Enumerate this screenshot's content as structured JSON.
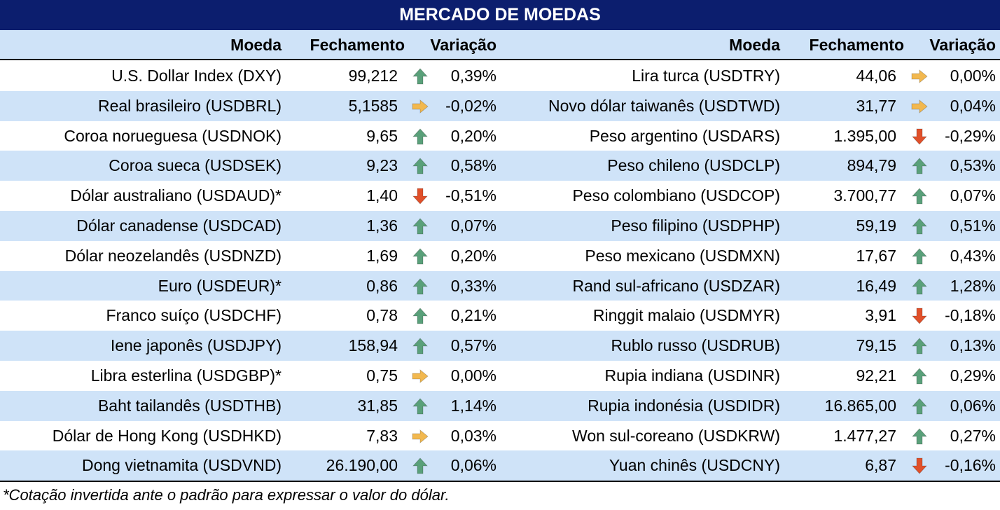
{
  "title": "MERCADO DE MOEDAS",
  "headers": {
    "currency": "Moeda",
    "close": "Fechamento",
    "change": "Variação"
  },
  "colors": {
    "title_bg": "#0c1e6e",
    "row_alt": "#cfe3f8",
    "up": "#5aa07a",
    "down": "#e0502a",
    "flat": "#f2b84f"
  },
  "left": [
    {
      "name": "U.S. Dollar Index (DXY)",
      "close": "99,212",
      "dir": "up",
      "change": "0,39%"
    },
    {
      "name": "Real brasileiro (USDBRL)",
      "close": "5,1585",
      "dir": "flat",
      "change": "-0,02%"
    },
    {
      "name": "Coroa norueguesa (USDNOK)",
      "close": "9,65",
      "dir": "up",
      "change": "0,20%"
    },
    {
      "name": "Coroa sueca (USDSEK)",
      "close": "9,23",
      "dir": "up",
      "change": "0,58%"
    },
    {
      "name": "Dólar australiano (USDAUD)*",
      "close": "1,40",
      "dir": "down",
      "change": "-0,51%"
    },
    {
      "name": "Dólar canadense (USDCAD)",
      "close": "1,36",
      "dir": "up",
      "change": "0,07%"
    },
    {
      "name": "Dólar neozelandês (USDNZD)",
      "close": "1,69",
      "dir": "up",
      "change": "0,20%"
    },
    {
      "name": "Euro (USDEUR)*",
      "close": "0,86",
      "dir": "up",
      "change": "0,33%"
    },
    {
      "name": "Franco suíço (USDCHF)",
      "close": "0,78",
      "dir": "up",
      "change": "0,21%"
    },
    {
      "name": "Iene japonês (USDJPY)",
      "close": "158,94",
      "dir": "up",
      "change": "0,57%"
    },
    {
      "name": "Libra esterlina (USDGBP)*",
      "close": "0,75",
      "dir": "flat",
      "change": "0,00%"
    },
    {
      "name": "Baht tailandês (USDTHB)",
      "close": "31,85",
      "dir": "up",
      "change": "1,14%"
    },
    {
      "name": "Dólar de Hong Kong (USDHKD)",
      "close": "7,83",
      "dir": "flat",
      "change": "0,03%"
    },
    {
      "name": "Dong vietnamita (USDVND)",
      "close": "26.190,00",
      "dir": "up",
      "change": "0,06%"
    }
  ],
  "right": [
    {
      "name": "Lira turca (USDTRY)",
      "close": "44,06",
      "dir": "flat",
      "change": "0,00%"
    },
    {
      "name": "Novo dólar taiwanês (USDTWD)",
      "close": "31,77",
      "dir": "flat",
      "change": "0,04%"
    },
    {
      "name": "Peso argentino (USDARS)",
      "close": "1.395,00",
      "dir": "down",
      "change": "-0,29%"
    },
    {
      "name": "Peso chileno (USDCLP)",
      "close": "894,79",
      "dir": "up",
      "change": "0,53%"
    },
    {
      "name": "Peso colombiano (USDCOP)",
      "close": "3.700,77",
      "dir": "up",
      "change": "0,07%"
    },
    {
      "name": "Peso filipino (USDPHP)",
      "close": "59,19",
      "dir": "up",
      "change": "0,51%"
    },
    {
      "name": "Peso mexicano (USDMXN)",
      "close": "17,67",
      "dir": "up",
      "change": "0,43%"
    },
    {
      "name": "Rand sul-africano (USDZAR)",
      "close": "16,49",
      "dir": "up",
      "change": "1,28%"
    },
    {
      "name": "Ringgit malaio (USDMYR)",
      "close": "3,91",
      "dir": "down",
      "change": "-0,18%"
    },
    {
      "name": "Rublo russo (USDRUB)",
      "close": "79,15",
      "dir": "up",
      "change": "0,13%"
    },
    {
      "name": "Rupia indiana (USDINR)",
      "close": "92,21",
      "dir": "up",
      "change": "0,29%"
    },
    {
      "name": "Rupia indonésia (USDIDR)",
      "close": "16.865,00",
      "dir": "up",
      "change": "0,06%"
    },
    {
      "name": "Won sul-coreano (USDKRW)",
      "close": "1.477,27",
      "dir": "up",
      "change": "0,27%"
    },
    {
      "name": "Yuan chinês (USDCNY)",
      "close": "6,87",
      "dir": "down",
      "change": "-0,16%"
    }
  ],
  "footnote": "*Cotação invertida ante o padrão para expressar o valor do dólar."
}
